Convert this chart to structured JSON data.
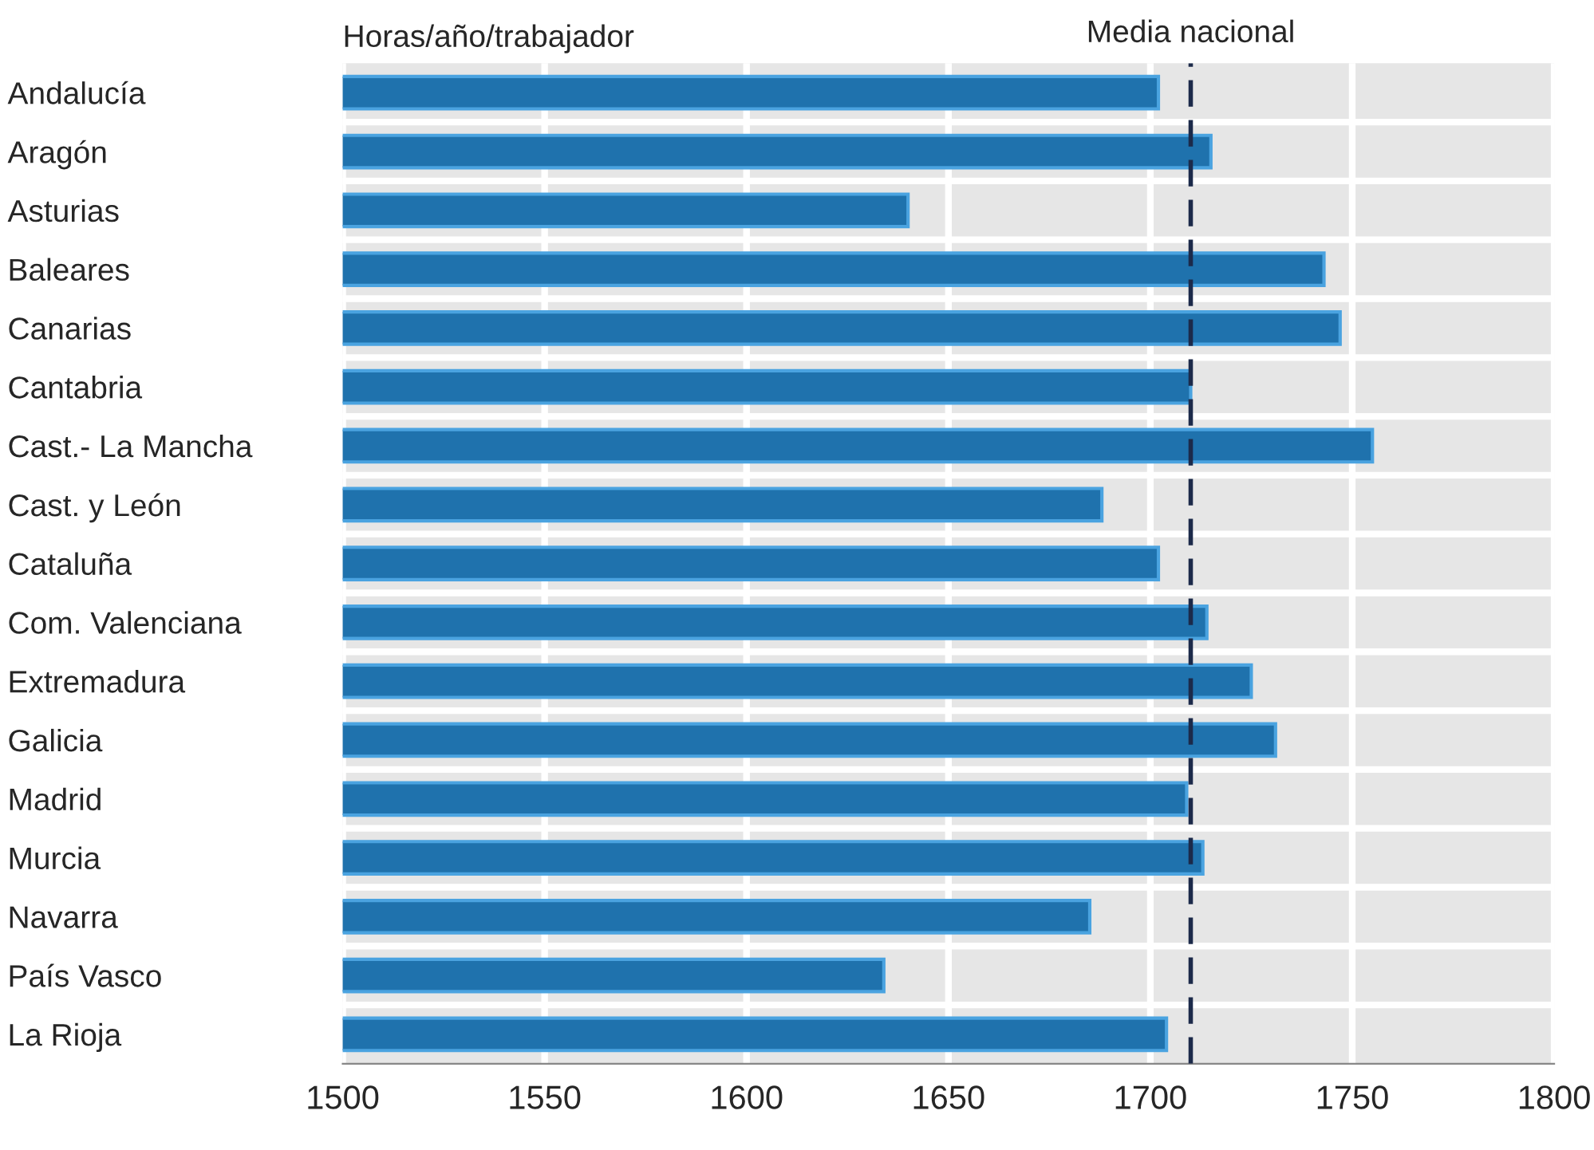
{
  "chart_data": {
    "type": "bar",
    "orientation": "horizontal",
    "categories": [
      "Andalucía",
      "Aragón",
      "Asturias",
      "Baleares",
      "Canarias",
      "Cantabria",
      "Cast.- La Mancha",
      "Cast. y León",
      "Cataluña",
      "Com. Valenciana",
      "Extremadura",
      "Galicia",
      "Madrid",
      "Murcia",
      "Navarra",
      "País Vasco",
      "La Rioja"
    ],
    "values": [
      1702,
      1715,
      1640,
      1743,
      1747,
      1710,
      1755,
      1688,
      1702,
      1714,
      1725,
      1731,
      1709,
      1713,
      1685,
      1634,
      1704
    ],
    "color": "#1f72ad",
    "xlim": [
      1500,
      1800
    ],
    "xticks": [
      1500,
      1550,
      1600,
      1650,
      1700,
      1750,
      1800
    ],
    "grid": "x",
    "annotations": [
      "Horas/año/trabajador"
    ],
    "ref_lines": [
      {
        "axis": "x",
        "value": 1710,
        "label": "Media nacional",
        "color": "#1c2a4a",
        "line_style": "dashed"
      }
    ]
  }
}
